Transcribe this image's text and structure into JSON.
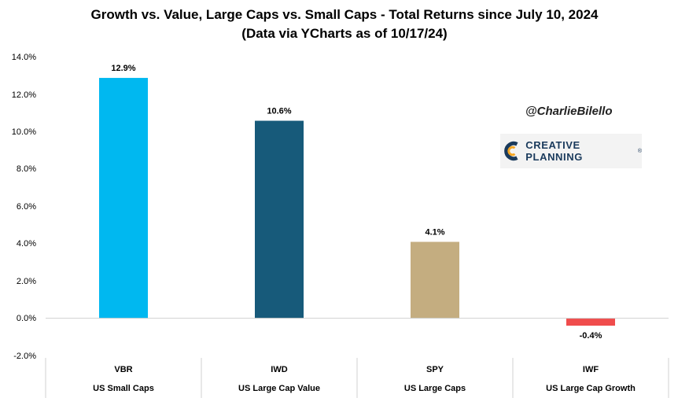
{
  "header": {
    "title": "Growth vs. Value, Large Caps vs. Small Caps - Total Returns since July 10, 2024",
    "subtitle": "(Data via YCharts as of 10/17/24)"
  },
  "branding": {
    "handle": "@CharlieBilello",
    "logo_text": "CREATIVE PLANNING",
    "logo_tm": "®"
  },
  "y_ticks": [
    "14.0%",
    "12.0%",
    "10.0%",
    "8.0%",
    "6.0%",
    "4.0%",
    "2.0%",
    "0.0%",
    "-2.0%"
  ],
  "chart_data": {
    "type": "bar",
    "title": "Growth vs. Value, Large Caps vs. Small Caps - Total Returns since July 10, 2024",
    "subtitle": "(Data via YCharts as of 10/17/24)",
    "categories": [
      "VBR",
      "IWD",
      "SPY",
      "IWF"
    ],
    "category_descriptions": [
      "US Small Caps",
      "US Large Cap Value",
      "US Large Caps",
      "US Large Cap Growth"
    ],
    "values": [
      12.9,
      10.6,
      4.1,
      -0.4
    ],
    "value_labels": [
      "12.9%",
      "10.6%",
      "4.1%",
      "-0.4%"
    ],
    "colors": [
      "#00b8f0",
      "#175a7a",
      "#c4ad80",
      "#f04c4c"
    ],
    "ylim": [
      -2,
      14
    ],
    "yticks": [
      -2,
      0,
      2,
      4,
      6,
      8,
      10,
      12,
      14
    ],
    "grid": false,
    "legend": "none"
  }
}
